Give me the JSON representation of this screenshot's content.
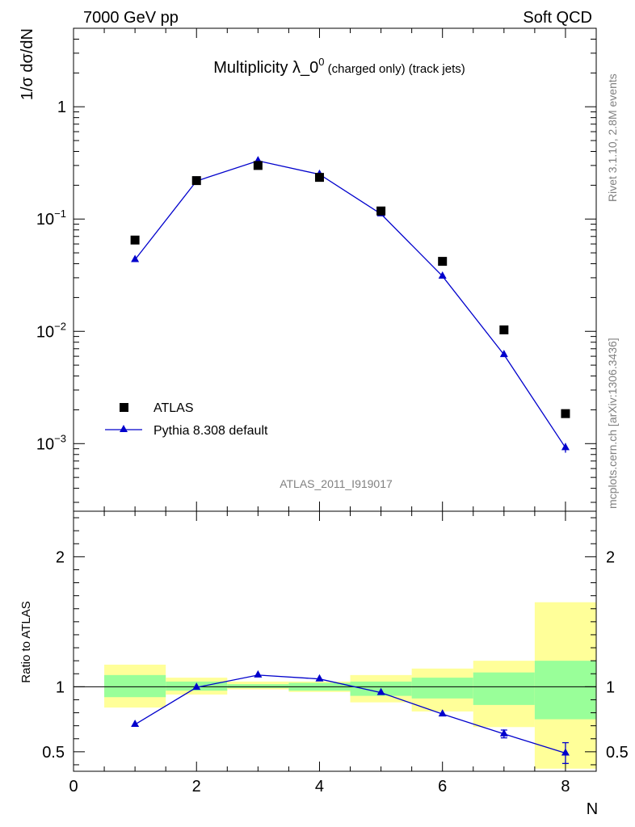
{
  "header": {
    "left": "7000 GeV pp",
    "right": "Soft QCD"
  },
  "title": {
    "main": "Multiplicity λ_0",
    "sup": "0",
    "sub": " (charged only) (track jets)"
  },
  "side_labels": {
    "rivet": "Rivet 3.1.10,  2.8M events",
    "mcplots": "mcplots.cern.ch [arXiv:1306.3436]"
  },
  "analysis_id": "ATLAS_2011_I919017",
  "colors": {
    "mc": "#0000cc",
    "data": "#000000",
    "band_stat": "#99ff99",
    "band_total": "#ffff99"
  },
  "chart_data": [
    {
      "type": "scatter",
      "panel": "main",
      "ylabel": "1/σ dσ/dN",
      "yscale": "log",
      "ylim": [
        0.00025,
        5
      ],
      "xlim": [
        0,
        8.5
      ],
      "y_ticks": [
        {
          "value": 0.001,
          "base": "10",
          "exp": "−3"
        },
        {
          "value": 0.01,
          "base": "10",
          "exp": "−2"
        },
        {
          "value": 0.1,
          "base": "10",
          "exp": "−1"
        },
        {
          "value": 1,
          "base": "1",
          "exp": ""
        }
      ],
      "legend_position": "lower-left",
      "series": [
        {
          "name": "ATLAS",
          "marker": "square",
          "x": [
            1,
            2,
            3,
            4,
            5,
            6,
            7,
            8
          ],
          "y": [
            0.065,
            0.22,
            0.3,
            0.235,
            0.118,
            0.042,
            0.0103,
            0.00185
          ]
        },
        {
          "name": "Pythia 8.308 default",
          "marker": "triangle",
          "x": [
            1,
            2,
            3,
            4,
            5,
            6,
            7,
            8
          ],
          "y": [
            0.0435,
            0.218,
            0.33,
            0.25,
            0.111,
            0.031,
            0.0062,
            0.00092
          ],
          "err": [
            0,
            0,
            0,
            0,
            0,
            0,
            0,
            9e-05
          ]
        }
      ]
    },
    {
      "type": "line",
      "panel": "ratio",
      "ylabel": "Ratio to ATLAS",
      "xlabel": "N",
      "ylim": [
        0.35,
        2.35
      ],
      "xlim": [
        0,
        8.5
      ],
      "x_ticks": [
        0,
        2,
        4,
        6,
        8
      ],
      "y_ticks": [
        0.5,
        1,
        2
      ],
      "reference": 1,
      "bands": [
        {
          "x0": 0.5,
          "x1": 1.5,
          "stat": [
            0.92,
            1.09
          ],
          "total": [
            0.84,
            1.17
          ]
        },
        {
          "x0": 1.5,
          "x1": 2.5,
          "stat": [
            0.97,
            1.04
          ],
          "total": [
            0.94,
            1.07
          ]
        },
        {
          "x0": 2.5,
          "x1": 3.5,
          "stat": [
            0.99,
            1.02
          ],
          "total": [
            0.98,
            1.04
          ]
        },
        {
          "x0": 3.5,
          "x1": 4.5,
          "stat": [
            0.97,
            1.03
          ],
          "total": [
            0.96,
            1.04
          ]
        },
        {
          "x0": 4.5,
          "x1": 5.5,
          "stat": [
            0.93,
            1.04
          ],
          "total": [
            0.88,
            1.09
          ]
        },
        {
          "x0": 5.5,
          "x1": 6.5,
          "stat": [
            0.91,
            1.07
          ],
          "total": [
            0.81,
            1.14
          ]
        },
        {
          "x0": 6.5,
          "x1": 7.5,
          "stat": [
            0.86,
            1.11
          ],
          "total": [
            0.69,
            1.2
          ]
        },
        {
          "x0": 7.5,
          "x1": 8.5,
          "stat": [
            0.75,
            1.2
          ],
          "total": [
            0.37,
            1.65
          ]
        }
      ],
      "series": [
        {
          "name": "Pythia 8.308 default",
          "x": [
            1,
            2,
            3,
            4,
            5,
            6,
            7,
            8
          ],
          "y": [
            0.71,
            0.995,
            1.09,
            1.06,
            0.955,
            0.79,
            0.637,
            0.49
          ],
          "err": [
            0,
            0,
            0,
            0,
            0,
            0,
            0.03,
            0.08
          ]
        }
      ]
    }
  ]
}
